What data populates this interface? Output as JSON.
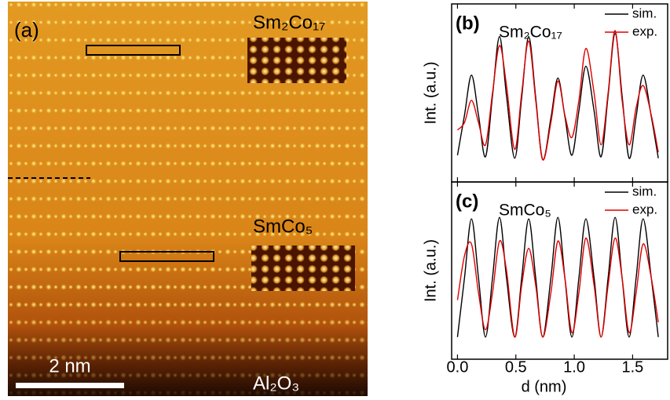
{
  "image_panel": {
    "label": "(a)",
    "phase_top": "Sm₂Co₁₇",
    "phase_bottom": "SmCo₅",
    "scale_bar": "2 nm",
    "substrate": "Al₂O₃"
  },
  "chart_data": [
    {
      "type": "line",
      "label": "(b)",
      "title": "Sm₂Co₁₇",
      "y_label": "Int. (a.u.)",
      "x": [
        0,
        0.06,
        0.12,
        0.18,
        0.24,
        0.3,
        0.36,
        0.42,
        0.49,
        0.55,
        0.61,
        0.67,
        0.73,
        0.8,
        0.86,
        0.92,
        0.98,
        1.04,
        1.1,
        1.17,
        1.23,
        1.29,
        1.35,
        1.41,
        1.47,
        1.53,
        1.59,
        1.66,
        1.72
      ],
      "series": [
        {
          "name": "sim.",
          "color": "#000000",
          "values": [
            0.08,
            0.35,
            0.62,
            0.35,
            0.07,
            0.48,
            0.88,
            0.48,
            0.06,
            0.47,
            0.88,
            0.47,
            0.05,
            0.33,
            0.6,
            0.34,
            0.08,
            0.38,
            0.68,
            0.38,
            0.07,
            0.48,
            0.9,
            0.48,
            0.06,
            0.34,
            0.62,
            0.34,
            0.06
          ]
        },
        {
          "name": "exp.",
          "color": "#e00000",
          "values": [
            0.25,
            0.3,
            0.45,
            0.3,
            0.15,
            0.5,
            0.82,
            0.55,
            0.12,
            0.5,
            0.85,
            0.45,
            0.05,
            0.3,
            0.58,
            0.35,
            0.2,
            0.45,
            0.8,
            0.5,
            0.15,
            0.5,
            0.92,
            0.45,
            0.15,
            0.4,
            0.55,
            0.35,
            0.1
          ]
        }
      ],
      "xlim": [
        -0.05,
        1.8
      ],
      "ylim": [
        -0.1,
        1.1
      ],
      "xticks": [
        0,
        0.5,
        1,
        1.5
      ]
    },
    {
      "type": "line",
      "label": "(c)",
      "title": "SmCo₅",
      "y_label": "Int. (a.u.)",
      "x_label": "d (nm)",
      "x": [
        0,
        0.06,
        0.12,
        0.18,
        0.24,
        0.3,
        0.36,
        0.42,
        0.49,
        0.55,
        0.61,
        0.67,
        0.73,
        0.8,
        0.86,
        0.92,
        0.98,
        1.04,
        1.1,
        1.17,
        1.23,
        1.29,
        1.35,
        1.41,
        1.47,
        1.53,
        1.59,
        1.66,
        1.72
      ],
      "series": [
        {
          "name": "sim.",
          "color": "#000000",
          "values": [
            0.05,
            0.45,
            0.85,
            0.45,
            0.05,
            0.45,
            0.86,
            0.45,
            0.05,
            0.45,
            0.85,
            0.45,
            0.05,
            0.45,
            0.86,
            0.45,
            0.05,
            0.45,
            0.85,
            0.45,
            0.05,
            0.45,
            0.86,
            0.45,
            0.05,
            0.45,
            0.85,
            0.45,
            0.05
          ]
        },
        {
          "name": "exp.",
          "color": "#e00000",
          "values": [
            0.3,
            0.6,
            0.68,
            0.35,
            0.1,
            0.35,
            0.7,
            0.5,
            0.05,
            0.4,
            0.65,
            0.4,
            0.05,
            0.35,
            0.7,
            0.45,
            0.08,
            0.35,
            0.72,
            0.4,
            0.05,
            0.4,
            0.72,
            0.45,
            0.08,
            0.35,
            0.68,
            0.45,
            0.15
          ]
        }
      ],
      "xlim": [
        -0.05,
        1.8
      ],
      "ylim": [
        -0.1,
        1.1
      ],
      "xticks": [
        {
          "value": 0,
          "label": "0.0"
        },
        0.5,
        {
          "value": 1,
          "label": "1.0"
        },
        1.5
      ]
    }
  ]
}
